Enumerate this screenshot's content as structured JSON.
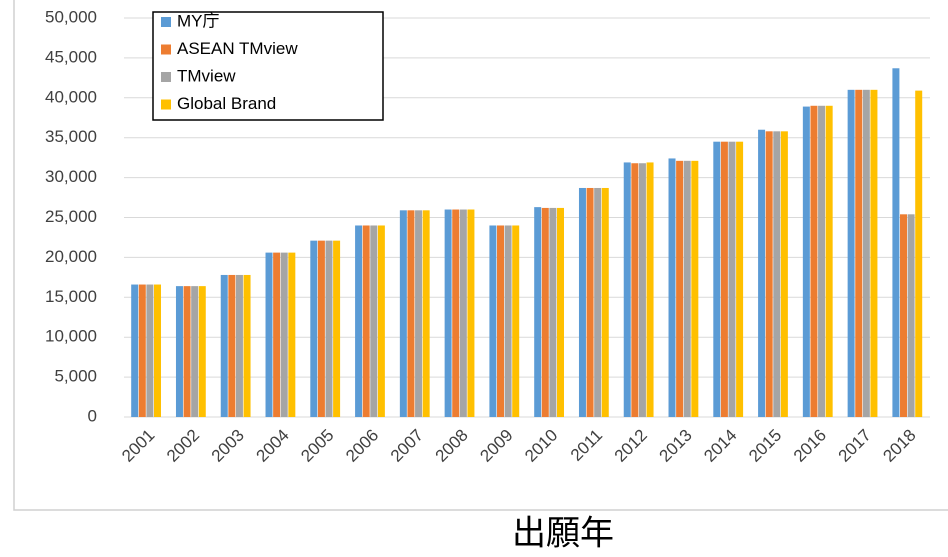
{
  "chart_data": {
    "type": "bar",
    "x_label": "出願年",
    "categories": [
      "2001",
      "2002",
      "2003",
      "2004",
      "2005",
      "2006",
      "2007",
      "2008",
      "2009",
      "2010",
      "2011",
      "2012",
      "2013",
      "2014",
      "2015",
      "2016",
      "2017",
      "2018"
    ],
    "series": [
      {
        "name": "MY庁",
        "color": "#5b9bd5",
        "values": [
          16600,
          16400,
          17800,
          20600,
          22100,
          24000,
          25900,
          26000,
          24000,
          26300,
          28700,
          31900,
          32400,
          34500,
          36000,
          38900,
          41000,
          43700
        ]
      },
      {
        "name": "ASEAN TMview",
        "color": "#ed7d31",
        "values": [
          16600,
          16400,
          17800,
          20600,
          22100,
          24000,
          25900,
          26000,
          24000,
          26200,
          28700,
          31800,
          32100,
          34500,
          35800,
          39000,
          41000,
          25400
        ]
      },
      {
        "name": "TMview",
        "color": "#a5a5a5",
        "values": [
          16600,
          16400,
          17800,
          20600,
          22100,
          24000,
          25900,
          26000,
          24000,
          26200,
          28700,
          31800,
          32100,
          34500,
          35800,
          39000,
          41000,
          25400
        ]
      },
      {
        "name": "Global Brand",
        "color": "#ffc000",
        "values": [
          16600,
          16400,
          17800,
          20600,
          22100,
          24000,
          25900,
          26000,
          24000,
          26200,
          28700,
          31900,
          32100,
          34500,
          35800,
          39000,
          41000,
          40900
        ]
      }
    ],
    "ylim": [
      0,
      50000
    ],
    "yticks": [
      0,
      {
        "value": 5000,
        "label": "5,000"
      },
      {
        "value": 10000,
        "label": "10,000"
      },
      {
        "value": 15000,
        "label": "15,000"
      },
      {
        "value": 20000,
        "label": "20,000"
      },
      {
        "value": 25000,
        "label": "25,000"
      },
      {
        "value": 30000,
        "label": "30,000"
      },
      {
        "value": 35000,
        "label": "35,000"
      },
      {
        "value": 40000,
        "label": "40,000"
      },
      {
        "value": 45000,
        "label": "45,000"
      },
      {
        "value": 50000,
        "label": "50,000"
      }
    ],
    "grid": true,
    "legend": "top-left"
  }
}
